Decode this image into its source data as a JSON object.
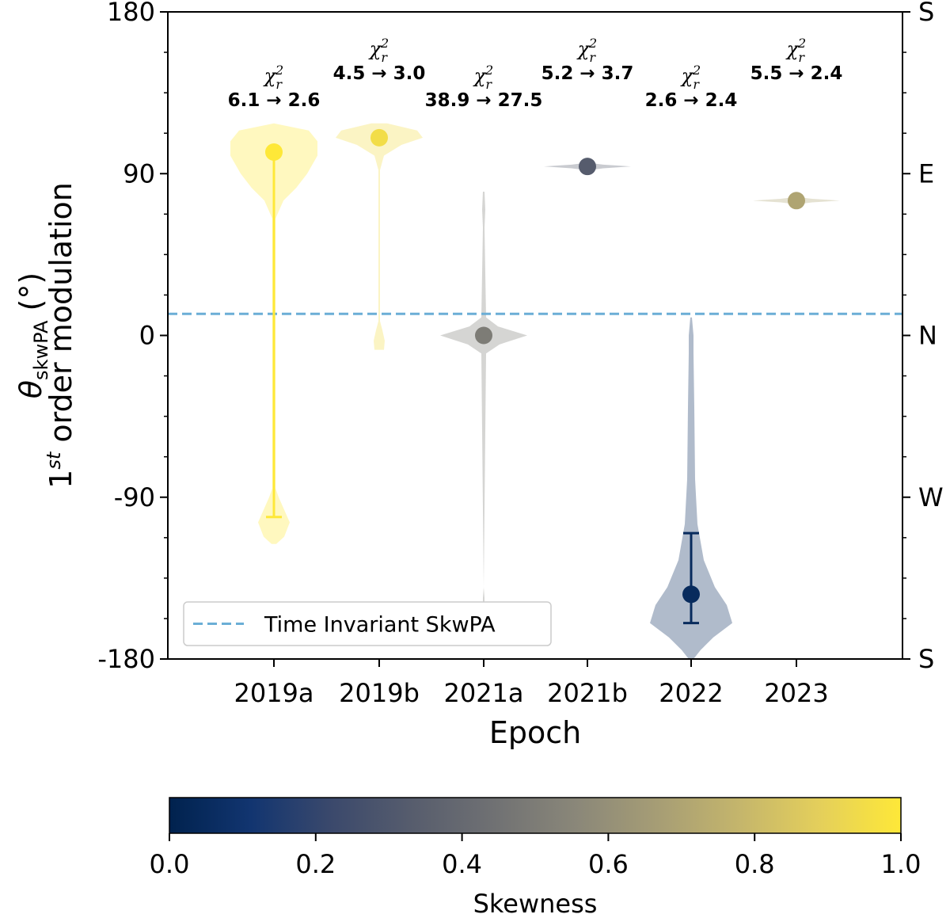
{
  "chart_data": {
    "type": "violin",
    "xlabel": "Epoch",
    "ylabel_line1": "θ",
    "ylabel_subscript": "skwPA",
    "ylabel_unit": " (°)",
    "ylabel_line2_pre": "1",
    "ylabel_line2_sup": "st",
    "ylabel_line2_post": " order modulation",
    "ylim": [
      -180,
      180
    ],
    "yticks": [
      {
        "value": 180,
        "label": "180"
      },
      {
        "value": 90,
        "label": "90"
      },
      {
        "value": 0,
        "label": "0"
      },
      {
        "value": -90,
        "label": "-90"
      },
      {
        "value": -180,
        "label": "-180"
      }
    ],
    "right_ticks": [
      {
        "value": 180,
        "label": "S"
      },
      {
        "value": 90,
        "label": "E"
      },
      {
        "value": 0,
        "label": "N"
      },
      {
        "value": -90,
        "label": "W"
      },
      {
        "value": -180,
        "label": "S"
      }
    ],
    "categories": [
      "2019a",
      "2019b",
      "2021a",
      "2021b",
      "2022",
      "2023"
    ],
    "epochs": [
      {
        "name": "2019a",
        "median": 102,
        "err_low": -101,
        "err_high": 102,
        "skewness": 1.0,
        "chi_label": "6.1 → 2.6",
        "violin": [
          [
            -116,
            3
          ],
          [
            -112,
            13
          ],
          [
            -104,
            20
          ],
          [
            -97,
            13
          ],
          [
            -90,
            6
          ],
          [
            -85,
            2
          ],
          [
            65,
            2
          ],
          [
            75,
            12
          ],
          [
            82,
            28
          ],
          [
            90,
            42
          ],
          [
            100,
            55
          ],
          [
            108,
            55
          ],
          [
            114,
            44
          ],
          [
            118,
            0
          ]
        ]
      },
      {
        "name": "2019b",
        "median": 110,
        "err_low": 110,
        "err_high": 110,
        "skewness": 0.95,
        "chi_label": "4.5 → 3.0",
        "violin": [
          [
            -8,
            6
          ],
          [
            -3,
            7
          ],
          [
            3,
            4
          ],
          [
            8,
            1
          ],
          [
            92,
            1
          ],
          [
            100,
            6
          ],
          [
            106,
            28
          ],
          [
            110,
            55
          ],
          [
            114,
            48
          ],
          [
            118,
            10
          ]
        ]
      },
      {
        "name": "2021a",
        "median": 0,
        "err_low": 0,
        "err_high": 0,
        "skewness": 0.5,
        "chi_label": "38.9 → 27.5",
        "violin": [
          [
            -152,
            1
          ],
          [
            -146,
            1
          ],
          [
            -140,
            0
          ],
          [
            -10,
            3
          ],
          [
            -5,
            20
          ],
          [
            0,
            55
          ],
          [
            5,
            18
          ],
          [
            10,
            3
          ],
          [
            60,
            1
          ],
          [
            70,
            2
          ],
          [
            80,
            1
          ]
        ]
      },
      {
        "name": "2021b",
        "median": 94,
        "err_low": 94,
        "err_high": 94,
        "skewness": 0.33,
        "chi_label": "5.2 → 3.7",
        "violin": [
          [
            92,
            2
          ],
          [
            93,
            20
          ],
          [
            94,
            55
          ],
          [
            95,
            20
          ],
          [
            96,
            2
          ]
        ]
      },
      {
        "name": "2022",
        "median": -144,
        "err_low -- ": null,
        "err_low": -160,
        "err_high": -110,
        "skewness": 0.05,
        "chi_label": "2.6 → 2.4",
        "violin": [
          [
            -180,
            3
          ],
          [
            -175,
            12
          ],
          [
            -168,
            28
          ],
          [
            -160,
            52
          ],
          [
            -150,
            45
          ],
          [
            -140,
            30
          ],
          [
            -125,
            16
          ],
          [
            -105,
            8
          ],
          [
            -80,
            5
          ],
          [
            -40,
            4
          ],
          [
            -10,
            3
          ],
          [
            0,
            3
          ],
          [
            10,
            1
          ]
        ]
      },
      {
        "name": "2023",
        "median": 75,
        "err_low": 75,
        "err_high": 75,
        "skewness": 0.7,
        "chi_label": "5.5 → 2.4",
        "violin": [
          [
            73,
            1
          ],
          [
            74,
            20
          ],
          [
            75,
            55
          ],
          [
            76,
            20
          ],
          [
            77,
            1
          ]
        ]
      }
    ],
    "reference_line": {
      "value": 12,
      "label": "Time Invariant SkwPA",
      "color": "#6baed6",
      "style": "dashed"
    },
    "legend": {
      "position": "lower-left",
      "entries": [
        "Time Invariant SkwPA"
      ]
    },
    "chi_symbol": "χ",
    "chi_sub": "r",
    "chi_sup": "2",
    "colorbar": {
      "label": "Skewness",
      "range": [
        0.0,
        1.0
      ],
      "ticks": [
        "0.0",
        "0.2",
        "0.4",
        "0.6",
        "0.8",
        "1.0"
      ],
      "colormap": "cividis",
      "stops": [
        "#00224e",
        "#123570",
        "#3b496c",
        "#575d6d",
        "#707173",
        "#8a8779",
        "#a69d75",
        "#c4b56c",
        "#e4cf5b",
        "#fee838"
      ]
    }
  }
}
